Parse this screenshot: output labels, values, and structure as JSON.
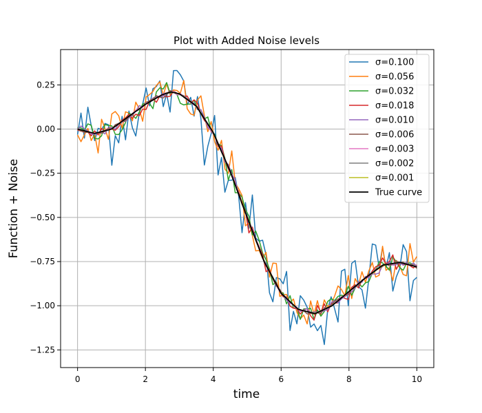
{
  "chart_data": {
    "type": "line",
    "title": "Plot with Added Noise levels",
    "xlabel": "time",
    "ylabel": "Function + Noise",
    "xlim": [
      -0.5,
      10.5
    ],
    "ylim": [
      -1.35,
      0.45
    ],
    "xticks": [
      0,
      2,
      4,
      6,
      8,
      10
    ],
    "xtick_labels": [
      "0",
      "2",
      "4",
      "6",
      "8",
      "10"
    ],
    "yticks": [
      -1.25,
      -1.0,
      -0.75,
      -0.5,
      -0.25,
      0.0,
      0.25
    ],
    "ytick_labels": [
      "−1.25",
      "−1.00",
      "−0.75",
      "−0.50",
      "−0.25",
      "0.00",
      "0.25"
    ],
    "grid": true,
    "legend_position": "top-right",
    "sample_count": 100,
    "true_curve": {
      "x": [
        0,
        0.5,
        1,
        1.5,
        2,
        2.5,
        2.75,
        3,
        3.5,
        4,
        4.5,
        5,
        5.5,
        6,
        6.5,
        7,
        7.5,
        8,
        8.5,
        9,
        9.5,
        10
      ],
      "y": [
        0.0,
        -0.025,
        0.0,
        0.07,
        0.14,
        0.195,
        0.21,
        0.2,
        0.13,
        -0.02,
        -0.24,
        -0.5,
        -0.75,
        -0.93,
        -1.02,
        -1.045,
        -1.0,
        -0.92,
        -0.84,
        -0.77,
        -0.755,
        -0.78
      ]
    },
    "series": [
      {
        "name": "σ=0.100",
        "sigma": 0.1,
        "color": "#1f77b4"
      },
      {
        "name": "σ=0.056",
        "sigma": 0.056,
        "color": "#ff7f0e"
      },
      {
        "name": "σ=0.032",
        "sigma": 0.032,
        "color": "#2ca02c"
      },
      {
        "name": "σ=0.018",
        "sigma": 0.018,
        "color": "#d62728"
      },
      {
        "name": "σ=0.010",
        "sigma": 0.01,
        "color": "#9467bd"
      },
      {
        "name": "σ=0.006",
        "sigma": 0.006,
        "color": "#8c564b"
      },
      {
        "name": "σ=0.003",
        "sigma": 0.003,
        "color": "#e377c2"
      },
      {
        "name": "σ=0.002",
        "sigma": 0.002,
        "color": "#7f7f7f"
      },
      {
        "name": "σ=0.001",
        "sigma": 0.001,
        "color": "#bcbd22"
      },
      {
        "name": "True curve",
        "sigma": 0,
        "color": "#000000"
      }
    ]
  }
}
